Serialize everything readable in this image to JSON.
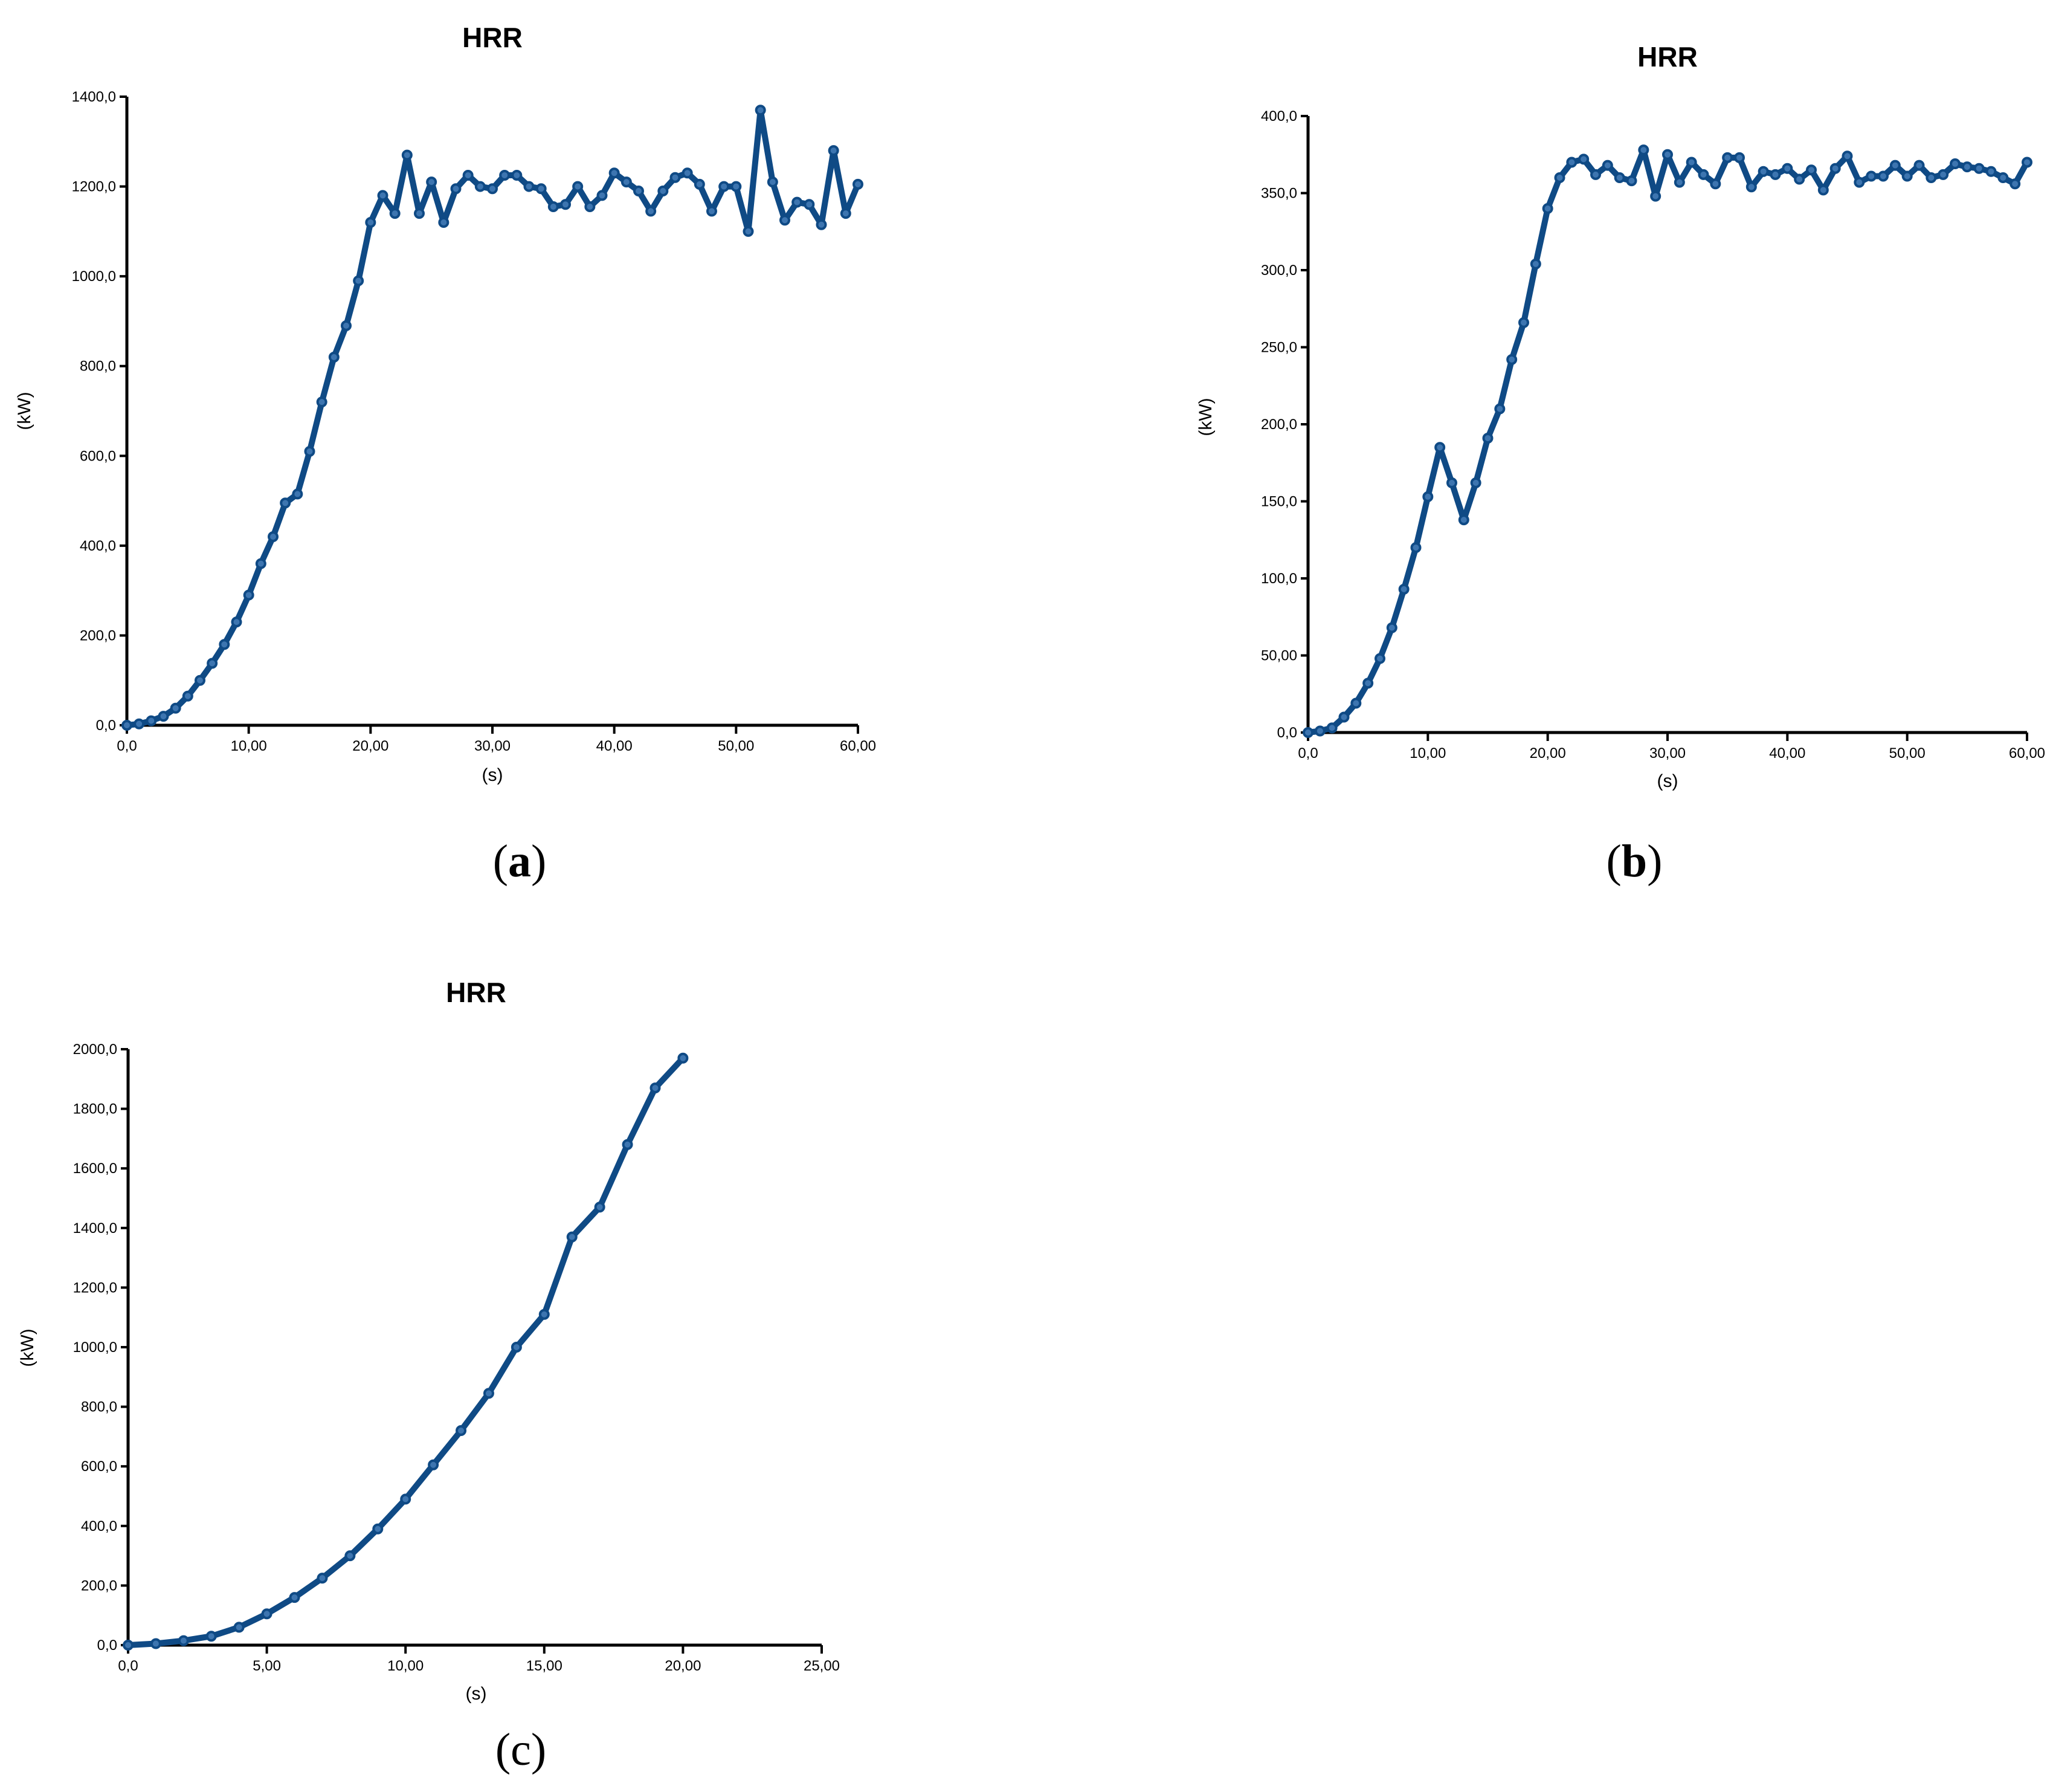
{
  "colors": {
    "series": "#0f4a85",
    "marker_fill": "#3d75b0",
    "axis": "#000000"
  },
  "chart_data": [
    {
      "panel": "a",
      "type": "line",
      "title": "HRR",
      "xlabel": "(s)",
      "ylabel": "(kW)",
      "xlim": [
        0,
        60
      ],
      "ylim": [
        0,
        1400
      ],
      "xticks": [
        0,
        10,
        20,
        30,
        40,
        50,
        60
      ],
      "xtick_labels": [
        "0,0",
        "10,00",
        "20,00",
        "30,00",
        "40,00",
        "50,00",
        "60,00"
      ],
      "yticks": [
        0,
        200,
        400,
        600,
        800,
        1000,
        1200,
        1400
      ],
      "ytick_labels": [
        "0,0",
        "200,0",
        "400,0",
        "600,0",
        "800,0",
        "1000,0",
        "1200,0",
        "1400,0"
      ],
      "grid": false,
      "series": [
        {
          "x": [
            0,
            1,
            2,
            3,
            4,
            5,
            6,
            7,
            8,
            9,
            10,
            11,
            12,
            13,
            14,
            15,
            16,
            17,
            18,
            19,
            20,
            21,
            22,
            23,
            24,
            25,
            26,
            27,
            28,
            29,
            30,
            31,
            32,
            33,
            34,
            35,
            36,
            37,
            38,
            39,
            40,
            41,
            42,
            43,
            44,
            45,
            46,
            47,
            48,
            49,
            50,
            51,
            52,
            53,
            54,
            55,
            56,
            57,
            58,
            59,
            60
          ],
          "values": [
            0,
            3,
            10,
            20,
            38,
            65,
            100,
            138,
            180,
            230,
            290,
            360,
            420,
            495,
            515,
            610,
            720,
            820,
            890,
            990,
            1120,
            1180,
            1140,
            1270,
            1140,
            1210,
            1120,
            1195,
            1225,
            1200,
            1195,
            1225,
            1225,
            1200,
            1195,
            1155,
            1160,
            1200,
            1155,
            1180,
            1230,
            1210,
            1190,
            1145,
            1190,
            1220,
            1230,
            1205,
            1145,
            1200,
            1200,
            1100,
            1370,
            1210,
            1125,
            1165,
            1160,
            1115,
            1280,
            1140,
            1205
          ]
        }
      ]
    },
    {
      "panel": "b",
      "type": "line",
      "title": "HRR",
      "xlabel": "(s)",
      "ylabel": "(kW)",
      "xlim": [
        0,
        60
      ],
      "ylim": [
        0,
        400
      ],
      "xticks": [
        0,
        10,
        20,
        30,
        40,
        50,
        60
      ],
      "xtick_labels": [
        "0,0",
        "10,00",
        "20,00",
        "30,00",
        "40,00",
        "50,00",
        "60,00"
      ],
      "yticks": [
        0,
        50,
        100,
        150,
        200,
        250,
        300,
        350,
        400
      ],
      "ytick_labels": [
        "0,0",
        "50,00",
        "100,0",
        "150,0",
        "200,0",
        "250,0",
        "300,0",
        "350,0",
        "400,0"
      ],
      "grid": false,
      "series": [
        {
          "x": [
            0,
            1,
            2,
            3,
            4,
            5,
            6,
            7,
            8,
            9,
            10,
            11,
            12,
            13,
            14,
            15,
            16,
            17,
            18,
            19,
            20,
            21,
            22,
            23,
            24,
            25,
            26,
            27,
            28,
            29,
            30,
            31,
            32,
            33,
            34,
            35,
            36,
            37,
            38,
            39,
            40,
            41,
            42,
            43,
            44,
            45,
            46,
            47,
            48,
            49,
            50,
            51,
            52,
            53,
            54,
            55,
            56,
            57,
            58,
            59,
            60
          ],
          "values": [
            0,
            1,
            3,
            10,
            19,
            32,
            48,
            68,
            93,
            120,
            153,
            185,
            162,
            138,
            162,
            191,
            210,
            242,
            266,
            304,
            340,
            360,
            370,
            372,
            362,
            368,
            360,
            358,
            378,
            348,
            375,
            357,
            370,
            362,
            356,
            373,
            373,
            354,
            364,
            362,
            366,
            359,
            365,
            352,
            366,
            374,
            357,
            361,
            361,
            368,
            361,
            368,
            360,
            362,
            369,
            367,
            366,
            364,
            360,
            356,
            370
          ]
        }
      ]
    },
    {
      "panel": "c",
      "type": "line",
      "title": "HRR",
      "xlabel": "(s)",
      "ylabel": "(kW)",
      "xlim": [
        0,
        25
      ],
      "ylim": [
        0,
        2000
      ],
      "xticks": [
        0,
        5,
        10,
        15,
        20,
        25
      ],
      "xtick_labels": [
        "0,0",
        "5,00",
        "10,00",
        "15,00",
        "20,00",
        "25,00"
      ],
      "yticks": [
        0,
        200,
        400,
        600,
        800,
        1000,
        1200,
        1400,
        1600,
        1800,
        2000
      ],
      "ytick_labels": [
        "0,0",
        "200,0",
        "400,0",
        "600,0",
        "800,0",
        "1000,0",
        "1200,0",
        "1400,0",
        "1600,0",
        "1800,0",
        "2000,0"
      ],
      "grid": false,
      "series": [
        {
          "x": [
            0,
            1,
            2,
            3,
            4,
            5,
            6,
            7,
            8,
            9,
            10,
            11,
            12,
            13,
            14,
            15,
            16,
            17,
            18,
            19,
            20
          ],
          "values": [
            0,
            5,
            15,
            30,
            60,
            105,
            160,
            225,
            300,
            390,
            490,
            605,
            720,
            845,
            1000,
            1110,
            1370,
            1470,
            1680,
            1870,
            1970
          ]
        }
      ]
    }
  ],
  "panel_labels": {
    "a": {
      "open": "(",
      "letter": "a",
      "close": ")"
    },
    "b": {
      "open": "(",
      "letter": "b",
      "close": ")"
    },
    "c": {
      "open": "(",
      "letter": "c",
      "close": ")"
    }
  }
}
